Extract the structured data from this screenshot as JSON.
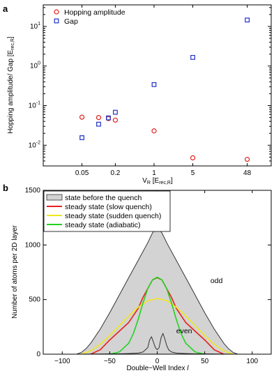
{
  "chart_data": [
    {
      "panel": "a",
      "type": "scatter",
      "xlabel": "V",
      "xlabel_sub": "R",
      "xlabel_unit": "[E",
      "xlabel_unit_sub": "rec,R",
      "xlabel_unit_end": "]",
      "ylabel": "Hopping amplitude/ Gap [E",
      "ylabel_sub": "rec,R",
      "ylabel_end": "]",
      "xscale": "log",
      "yscale": "log",
      "xlim": [
        0.01,
        130
      ],
      "ylim": [
        0.003,
        35
      ],
      "xticks": [
        0.05,
        0.2,
        1,
        5,
        48
      ],
      "xtick_labels": [
        "0.05",
        "0.2",
        "1",
        "5",
        "48"
      ],
      "yticks": [
        0.01,
        0.1,
        1,
        10
      ],
      "ytick_base": "10",
      "ytick_exponents": [
        "-2",
        "-1",
        "0",
        "1"
      ],
      "legend_position": "top-left",
      "series": [
        {
          "name": "Hopping amplitude",
          "marker": "circle",
          "color": "#e0201b",
          "x": [
            0.05,
            0.1,
            0.15,
            0.2,
            1,
            5,
            48
          ],
          "y": [
            0.051,
            0.05,
            0.047,
            0.043,
            0.023,
            0.0048,
            0.0044
          ]
        },
        {
          "name": "Gap",
          "marker": "square",
          "color": "#1f2fc8",
          "x": [
            0.05,
            0.1,
            0.15,
            0.2,
            1,
            5,
            48
          ],
          "y": [
            0.0155,
            0.034,
            0.049,
            0.068,
            0.34,
            1.65,
            14.5
          ]
        }
      ]
    },
    {
      "panel": "b",
      "type": "line",
      "xlabel": "Double−Well Index ",
      "xlabel_italic": "l",
      "ylabel": "Number of atoms per 2D layer",
      "xlim": [
        -120,
        120
      ],
      "ylim": [
        0,
        1500
      ],
      "xticks": [
        -100,
        -50,
        0,
        50,
        100
      ],
      "xtick_labels": [
        "−100",
        "−50",
        "0",
        "50",
        "100"
      ],
      "yticks": [
        0,
        500,
        1000,
        1500
      ],
      "ytick_labels": [
        "0",
        "500",
        "1000",
        "1500"
      ],
      "legend_position": "top-left",
      "annotations": [
        {
          "text": "odd",
          "x": 56,
          "y": 650
        },
        {
          "text": "even",
          "x": 20,
          "y": 190
        }
      ],
      "series": [
        {
          "name": "state before the quench",
          "kind": "filled-area",
          "fill": "#d3d3d3",
          "edge": "#333333",
          "x": [
            -95,
            -85,
            -80,
            -75,
            -70,
            -60,
            -50,
            -40,
            -30,
            -20,
            -10,
            -5,
            0,
            5,
            10,
            20,
            30,
            40,
            50,
            60,
            70,
            75,
            80,
            85,
            95
          ],
          "y": [
            0,
            0,
            15,
            50,
            100,
            230,
            380,
            540,
            700,
            860,
            1020,
            1110,
            1165,
            1110,
            1020,
            860,
            700,
            540,
            380,
            230,
            100,
            50,
            15,
            0,
            0
          ]
        },
        {
          "name": "steady state (slow quench)",
          "color": "#e8201c",
          "x": [
            -70,
            -60,
            -50,
            -40,
            -30,
            -20,
            -15,
            -10,
            -5,
            0,
            5,
            10,
            15,
            20,
            30,
            40,
            50,
            60,
            70
          ],
          "y": [
            0,
            40,
            130,
            210,
            290,
            420,
            520,
            600,
            680,
            700,
            680,
            600,
            520,
            420,
            290,
            210,
            130,
            40,
            0
          ]
        },
        {
          "name": "steady state (sudden quench)",
          "color": "#f0e61e",
          "x": [
            -80,
            -70,
            -60,
            -50,
            -40,
            -30,
            -20,
            -10,
            0,
            10,
            20,
            30,
            40,
            50,
            60,
            70,
            80
          ],
          "y": [
            0,
            30,
            90,
            170,
            260,
            350,
            430,
            490,
            510,
            490,
            430,
            350,
            260,
            170,
            90,
            30,
            0
          ]
        },
        {
          "name": "steady state (adiabatic)",
          "color": "#22d21e",
          "x": [
            -50,
            -40,
            -30,
            -25,
            -20,
            -15,
            -10,
            -5,
            0,
            5,
            10,
            15,
            20,
            25,
            30,
            40,
            50
          ],
          "y": [
            0,
            20,
            100,
            190,
            320,
            470,
            600,
            680,
            705,
            680,
            600,
            470,
            320,
            190,
            100,
            20,
            0
          ]
        },
        {
          "name": "even",
          "color": "#333333",
          "legend": false,
          "x": [
            -80,
            -60,
            -40,
            -30,
            -20,
            -15,
            -10,
            -8,
            -6,
            -4,
            -2,
            0,
            2,
            4,
            6,
            8,
            10,
            12,
            15,
            20,
            30,
            40,
            60,
            80
          ],
          "y": [
            0,
            1,
            3,
            6,
            10,
            20,
            60,
            130,
            160,
            110,
            60,
            40,
            60,
            150,
            190,
            140,
            80,
            40,
            20,
            10,
            6,
            3,
            1,
            0
          ]
        }
      ]
    }
  ]
}
